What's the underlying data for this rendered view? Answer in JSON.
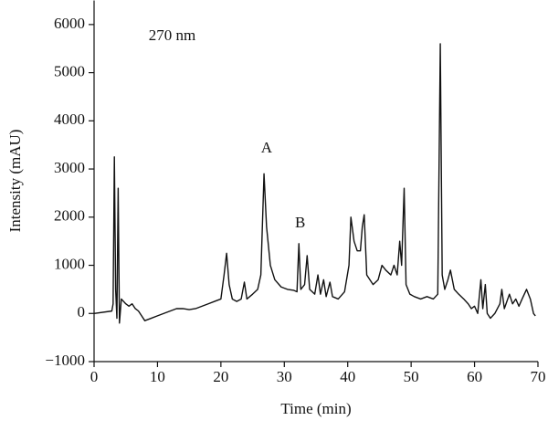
{
  "chart_data": {
    "type": "line",
    "xlabel": "Time (min)",
    "ylabel": "Intensity (mAU)",
    "color": "#111111",
    "annotations": [
      {
        "text": "270 nm",
        "x": 8.6,
        "y": 5750
      },
      {
        "text": "A",
        "x": 27.2,
        "y": 3420
      },
      {
        "text": "B",
        "x": 32.5,
        "y": 1860
      }
    ],
    "xlim": [
      0,
      70
    ],
    "xticks": [
      0,
      10,
      20,
      30,
      40,
      50,
      60,
      70
    ],
    "ylim": [
      -1000,
      6500
    ],
    "yticks": [
      {
        "value": -1000,
        "label": "−1000"
      },
      0,
      1000,
      2000,
      3000,
      4000,
      5000,
      6000
    ],
    "x": [
      0,
      2.8,
      3.0,
      3.2,
      3.4,
      3.6,
      3.8,
      4.0,
      4.3,
      5,
      5.5,
      6,
      6.5,
      7,
      7.5,
      8,
      9,
      10,
      11,
      12,
      13,
      14,
      15,
      16,
      17,
      18,
      19,
      20,
      20.5,
      20.9,
      21.3,
      21.8,
      22.5,
      23.2,
      23.7,
      24.1,
      25,
      25.8,
      26.3,
      26.8,
      27.2,
      27.8,
      28.5,
      29.5,
      30.5,
      31.5,
      32.0,
      32.3,
      32.6,
      33.2,
      33.6,
      34,
      34.8,
      35.3,
      35.7,
      36.2,
      36.6,
      37.2,
      37.6,
      38.5,
      39.5,
      40.2,
      40.5,
      41,
      41.5,
      42,
      42.3,
      42.6,
      43,
      43.5,
      44,
      44.8,
      45.4,
      46,
      46.8,
      47.3,
      47.8,
      48.2,
      48.5,
      48.9,
      49.2,
      49.8,
      50.5,
      51.5,
      52.5,
      53.5,
      54.2,
      54.6,
      54.9,
      55.3,
      55.8,
      56.2,
      56.8,
      57.5,
      58.3,
      59,
      59.5,
      60,
      60.5,
      61,
      61.3,
      61.7,
      62,
      62.5,
      63.2,
      64,
      64.3,
      64.7,
      65.5,
      66,
      66.5,
      67,
      67.5,
      68.2,
      68.8,
      69.3,
      69.6
    ],
    "values": [
      0,
      50,
      200,
      3250,
      500,
      -100,
      2600,
      -200,
      300,
      200,
      150,
      200,
      100,
      50,
      -50,
      -150,
      -100,
      -50,
      0,
      50,
      100,
      100,
      80,
      100,
      150,
      200,
      250,
      300,
      800,
      1250,
      600,
      300,
      250,
      300,
      650,
      300,
      400,
      500,
      800,
      2900,
      1800,
      1000,
      700,
      550,
      500,
      480,
      450,
      1450,
      500,
      600,
      1200,
      500,
      400,
      800,
      400,
      700,
      350,
      650,
      350,
      300,
      450,
      1000,
      2000,
      1500,
      1300,
      1300,
      1800,
      2050,
      800,
      700,
      600,
      700,
      1000,
      900,
      800,
      1000,
      800,
      1500,
      1000,
      2600,
      600,
      400,
      350,
      300,
      350,
      300,
      400,
      5600,
      800,
      500,
      700,
      900,
      500,
      400,
      300,
      200,
      100,
      150,
      0,
      700,
      100,
      600,
      0,
      -100,
      0,
      200,
      500,
      100,
      400,
      200,
      300,
      150,
      300,
      500,
      300,
      0,
      -50
    ]
  }
}
